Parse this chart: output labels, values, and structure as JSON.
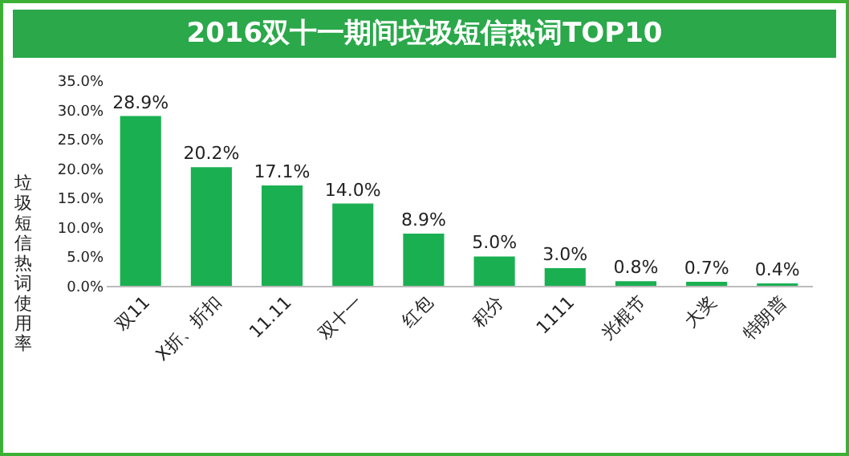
{
  "chart_data": {
    "type": "bar",
    "title": "2016双十一期间垃圾短信热词TOP10",
    "ylabel": "垃圾短信热词使用率",
    "categories": [
      "双11",
      "X折、折扣",
      "11.11",
      "双十一",
      "红包",
      "积分",
      "1111",
      "光棍节",
      "大奖",
      "特朗普"
    ],
    "values": [
      28.9,
      20.2,
      17.1,
      14.0,
      8.9,
      5.0,
      3.0,
      0.8,
      0.7,
      0.4
    ],
    "value_labels": [
      "28.9%",
      "20.2%",
      "17.1%",
      "14.0%",
      "8.9%",
      "5.0%",
      "3.0%",
      "0.8%",
      "0.7%",
      "0.4%"
    ],
    "color": "#1ab052",
    "ylim": [
      0,
      35
    ],
    "yticks": [
      {
        "value": 0,
        "label": "0.0%"
      },
      {
        "value": 5,
        "label": "5.0%"
      },
      {
        "value": 10,
        "label": "10.0%"
      },
      {
        "value": 15,
        "label": "15.0%"
      },
      {
        "value": 20,
        "label": "20.0%"
      },
      {
        "value": 25,
        "label": "25.0%"
      },
      {
        "value": 30,
        "label": "30.0%"
      },
      {
        "value": 35,
        "label": "35.0%"
      }
    ],
    "grid": false
  }
}
